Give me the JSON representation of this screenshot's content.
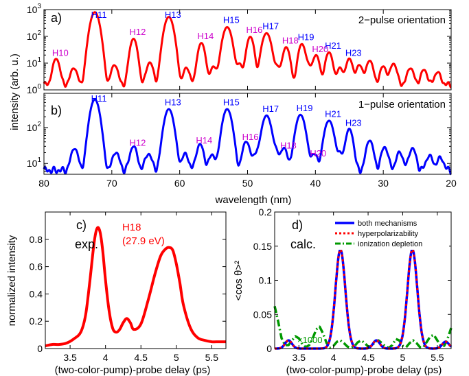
{
  "chart_data": [
    {
      "panel": "a)",
      "type": "line",
      "label": "2−pulse orientation",
      "yscale": "log",
      "xlim": [
        80,
        20
      ],
      "ylim": [
        1,
        1000
      ],
      "xticks": [],
      "yticks": [
        1,
        10,
        100,
        1000
      ],
      "ytick_labels": [
        "10^0",
        "10^1",
        "10^2",
        "10^3"
      ],
      "series": [
        {
          "color": "#ff0000",
          "peaks": [
            {
              "x": 78.2,
              "y": 13,
              "label": "H10",
              "labelColor": "#cc00cc"
            },
            {
              "x": 72.5,
              "y": 800,
              "label": "H11",
              "labelColor": "#0000ff"
            },
            {
              "x": 66.8,
              "y": 80,
              "label": "H12",
              "labelColor": "#cc00cc"
            },
            {
              "x": 61.6,
              "y": 530,
              "label": "H13",
              "labelColor": "#0000ff"
            },
            {
              "x": 56.8,
              "y": 55,
              "label": "H14",
              "labelColor": "#cc00cc"
            },
            {
              "x": 53.0,
              "y": 220,
              "label": "H15",
              "labelColor": "#0000ff"
            },
            {
              "x": 49.6,
              "y": 95,
              "label": "H16",
              "labelColor": "#cc00cc"
            },
            {
              "x": 47.2,
              "y": 130,
              "label": "H17",
              "labelColor": "#0000ff"
            },
            {
              "x": 44.3,
              "y": 38,
              "label": "H18",
              "labelColor": "#cc00cc"
            },
            {
              "x": 42.0,
              "y": 50,
              "label": "H19",
              "labelColor": "#0000ff"
            },
            {
              "x": 39.9,
              "y": 18,
              "label": "H20",
              "labelColor": "#cc00cc"
            },
            {
              "x": 38.0,
              "y": 24,
              "label": "H21",
              "labelColor": "#0000ff"
            },
            {
              "x": 35.0,
              "y": 13,
              "label": "H23",
              "labelColor": "#0000ff"
            },
            {
              "x": 75.6,
              "y": 5
            },
            {
              "x": 69.6,
              "y": 7
            },
            {
              "x": 64.4,
              "y": 9
            },
            {
              "x": 59.0,
              "y": 5
            },
            {
              "x": 55.0,
              "y": 6
            },
            {
              "x": 51.2,
              "y": 8
            },
            {
              "x": 45.6,
              "y": 6
            },
            {
              "x": 41.0,
              "y": 6
            },
            {
              "x": 36.4,
              "y": 5
            },
            {
              "x": 33.5,
              "y": 7
            },
            {
              "x": 32.0,
              "y": 11
            },
            {
              "x": 30.0,
              "y": 6
            },
            {
              "x": 28.5,
              "y": 8
            },
            {
              "x": 26.0,
              "y": 5
            },
            {
              "x": 24.0,
              "y": 4
            },
            {
              "x": 22.0,
              "y": 3
            }
          ]
        }
      ]
    },
    {
      "panel": "b)",
      "type": "line",
      "label": "1−pulse orientation",
      "yscale": "log",
      "xlim": [
        80,
        20
      ],
      "ylim": [
        5,
        900
      ],
      "xticks": [
        80,
        70,
        60,
        50,
        40,
        30,
        20
      ],
      "yticks": [
        10,
        100
      ],
      "ytick_labels": [
        "10^1",
        "10^2"
      ],
      "xlabel": "wavelength (nm)",
      "series": [
        {
          "color": "#0000ff",
          "peaks": [
            {
              "x": 72.5,
              "y": 600,
              "label": "H11",
              "labelColor": "#0000ff"
            },
            {
              "x": 66.8,
              "y": 24,
              "label": "H12",
              "labelColor": "#cc00cc"
            },
            {
              "x": 61.6,
              "y": 320,
              "label": "H13",
              "labelColor": "#0000ff"
            },
            {
              "x": 57.0,
              "y": 28,
              "label": "H14",
              "labelColor": "#cc00cc"
            },
            {
              "x": 53.0,
              "y": 320,
              "label": "H15",
              "labelColor": "#0000ff"
            },
            {
              "x": 50.2,
              "y": 35,
              "label": "H16",
              "labelColor": "#cc00cc"
            },
            {
              "x": 47.2,
              "y": 210,
              "label": "H17",
              "labelColor": "#0000ff"
            },
            {
              "x": 44.6,
              "y": 20,
              "label": "H18",
              "labelColor": "#cc00cc"
            },
            {
              "x": 42.2,
              "y": 220,
              "label": "H19",
              "labelColor": "#0000ff"
            },
            {
              "x": 40.2,
              "y": 12,
              "label": "H20",
              "labelColor": "#cc00cc"
            },
            {
              "x": 38.0,
              "y": 150,
              "label": "H21",
              "labelColor": "#0000ff"
            },
            {
              "x": 35.0,
              "y": 85,
              "label": "H23",
              "labelColor": "#0000ff"
            },
            {
              "x": 75.5,
              "y": 20
            },
            {
              "x": 69.4,
              "y": 14
            },
            {
              "x": 64.6,
              "y": 12
            },
            {
              "x": 59.2,
              "y": 12
            },
            {
              "x": 55.2,
              "y": 11
            },
            {
              "x": 48.8,
              "y": 12
            },
            {
              "x": 45.8,
              "y": 14
            },
            {
              "x": 36.4,
              "y": 12
            },
            {
              "x": 32.0,
              "y": 38
            },
            {
              "x": 29.8,
              "y": 22
            },
            {
              "x": 27.6,
              "y": 14
            },
            {
              "x": 25.7,
              "y": 20
            },
            {
              "x": 23.2,
              "y": 10
            },
            {
              "x": 21.6,
              "y": 8
            }
          ]
        }
      ]
    },
    {
      "panel": "c)",
      "type": "line",
      "label": "exp.",
      "annotation": "H18",
      "annotation2": "(27.9 eV)",
      "xlim": [
        3.15,
        5.7
      ],
      "ylim": [
        0,
        1
      ],
      "xticks": [
        3.5,
        4,
        4.5,
        5,
        5.5
      ],
      "yticks": [
        0,
        0.2,
        0.4,
        0.6,
        0.8
      ],
      "xlabel": "(two-color-pump)-probe delay (ps)",
      "ylabel": "normalized intensity",
      "series": [
        {
          "color": "#ff0000",
          "x": [
            3.15,
            3.25,
            3.35,
            3.45,
            3.55,
            3.65,
            3.72,
            3.78,
            3.84,
            3.88,
            3.92,
            3.96,
            4.0,
            4.05,
            4.1,
            4.15,
            4.2,
            4.25,
            4.3,
            4.35,
            4.4,
            4.5,
            4.6,
            4.7,
            4.78,
            4.85,
            4.9,
            4.95,
            5.0,
            5.05,
            5.1,
            5.2,
            5.3,
            5.4,
            5.5,
            5.6,
            5.7
          ],
          "y": [
            0.02,
            0.03,
            0.03,
            0.04,
            0.07,
            0.12,
            0.25,
            0.5,
            0.78,
            0.88,
            0.86,
            0.72,
            0.5,
            0.28,
            0.15,
            0.12,
            0.14,
            0.19,
            0.22,
            0.19,
            0.14,
            0.18,
            0.35,
            0.55,
            0.68,
            0.73,
            0.74,
            0.72,
            0.62,
            0.48,
            0.32,
            0.15,
            0.08,
            0.06,
            0.05,
            0.05,
            0.05
          ]
        }
      ]
    },
    {
      "panel": "d)",
      "type": "line",
      "label": "calc.",
      "annotation": "×1000",
      "xlim": [
        3.15,
        5.7
      ],
      "ylim": [
        0,
        0.2
      ],
      "xticks": [
        3.5,
        4,
        4.5,
        5,
        5.5
      ],
      "yticks": [
        0,
        0.05,
        0.1,
        0.15,
        0.2
      ],
      "ytick_labels": [
        "0",
        "0.05",
        "0.1",
        "0.15",
        "0.2"
      ],
      "xlabel": "(two-color-pump)-probe delay (ps)",
      "ylabel": "<cos θ>²",
      "legend": "top-right",
      "series": [
        {
          "name": "both mechanisms",
          "color": "#0000ff",
          "style": "solid",
          "width": 3
        },
        {
          "name": "hyperpolarizability",
          "color": "#ff0000",
          "style": "dotted",
          "width": 3
        },
        {
          "name": "ionization depletion",
          "color": "#009900",
          "style": "dashdot",
          "width": 3
        }
      ],
      "main_peaks": [
        4.1,
        5.14
      ],
      "main_peak_height": 0.145,
      "main_peak_sigma": 0.1,
      "small_bumps": [
        {
          "x": 3.35,
          "y": 0.012
        },
        {
          "x": 4.62,
          "y": 0.012
        },
        {
          "x": 5.62,
          "y": 0.01
        }
      ],
      "ionization_x": [
        3.15,
        3.2,
        3.25,
        3.3,
        3.35,
        3.4,
        3.45,
        3.5,
        3.55,
        3.6,
        3.65,
        3.7,
        3.75,
        3.8,
        3.85,
        3.9,
        3.95,
        4.0,
        4.05,
        4.1,
        4.15,
        4.2,
        4.25,
        4.3,
        4.35,
        4.4,
        4.45,
        4.5,
        4.55,
        4.6,
        4.65,
        4.7,
        4.75,
        4.8,
        4.85,
        4.9,
        4.95,
        5.0,
        5.05,
        5.1,
        5.15,
        5.2,
        5.25,
        5.3,
        5.35,
        5.4,
        5.45,
        5.5,
        5.55,
        5.6,
        5.65,
        5.7
      ],
      "ionization_y": [
        0.062,
        0.04,
        0.015,
        0.005,
        0.005,
        0.012,
        0.018,
        0.015,
        0.006,
        0.002,
        0.005,
        0.015,
        0.028,
        0.032,
        0.022,
        0.008,
        0.001,
        0.004,
        0.01,
        0.012,
        0.008,
        0.003,
        0.001,
        0.003,
        0.009,
        0.012,
        0.008,
        0.003,
        0.003,
        0.01,
        0.012,
        0.008,
        0.003,
        0.001,
        0.005,
        0.014,
        0.012,
        0.004,
        0.002,
        0.008,
        0.012,
        0.008,
        0.002,
        0.002,
        0.01,
        0.018,
        0.02,
        0.012,
        0.004,
        0.004,
        0.015,
        0.03
      ]
    }
  ]
}
